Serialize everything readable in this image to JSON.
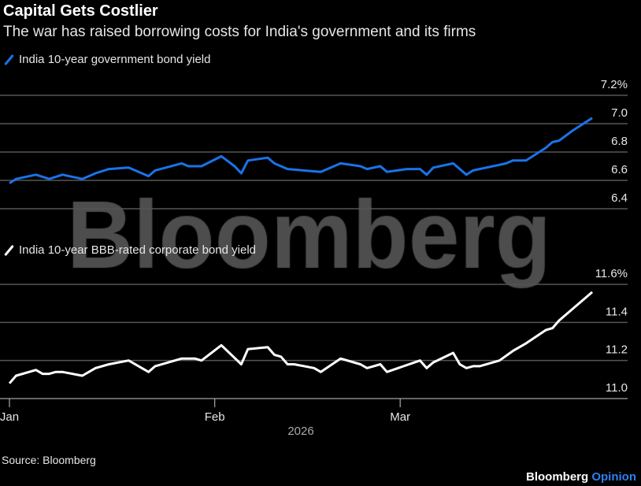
{
  "title": "Capital Gets Costlier",
  "subtitle": "The war has raised borrowing costs for India's government and its firms",
  "source": "Source: Bloomberg",
  "brand": {
    "name": "Bloomberg",
    "suffix": "Opinion"
  },
  "watermark": "Bloomberg",
  "colors": {
    "background": "#000000",
    "gov_line": "#1a73e8",
    "corp_line": "#ffffff",
    "grid": "#555555",
    "brand_accent": "#2f7ef0"
  },
  "chart_data": [
    {
      "type": "line",
      "legend_position": "top-left",
      "grid": true,
      "y_axis_side": "right",
      "ylim": [
        6.4,
        7.2
      ],
      "yticks": [
        "7.2%",
        "7.0",
        "6.8",
        "6.6",
        "6.4"
      ],
      "ytick_values": [
        7.2,
        7.0,
        6.8,
        6.6,
        6.4
      ],
      "series": [
        {
          "name": "India 10-year government bond yield",
          "color": "#1a73e8",
          "x": [
            "2026-01-01",
            "2026-01-02",
            "2026-01-05",
            "2026-01-07",
            "2026-01-09",
            "2026-01-12",
            "2026-01-14",
            "2026-01-16",
            "2026-01-19",
            "2026-01-22",
            "2026-01-23",
            "2026-01-27",
            "2026-01-28",
            "2026-01-30",
            "2026-02-02",
            "2026-02-04",
            "2026-02-05",
            "2026-02-06",
            "2026-02-09",
            "2026-02-10",
            "2026-02-12",
            "2026-02-17",
            "2026-02-20",
            "2026-02-23",
            "2026-02-24",
            "2026-02-26",
            "2026-02-27",
            "2026-03-02",
            "2026-03-04",
            "2026-03-05",
            "2026-03-06",
            "2026-03-09",
            "2026-03-11",
            "2026-03-12",
            "2026-03-17",
            "2026-03-18",
            "2026-03-20",
            "2026-03-23",
            "2026-03-24",
            "2026-03-25",
            "2026-03-27",
            "2026-03-30"
          ],
          "y": [
            6.58,
            6.61,
            6.64,
            6.61,
            6.64,
            6.61,
            6.65,
            6.68,
            6.69,
            6.63,
            6.67,
            6.72,
            6.7,
            6.7,
            6.77,
            6.7,
            6.65,
            6.74,
            6.76,
            6.72,
            6.68,
            6.66,
            6.72,
            6.7,
            6.68,
            6.7,
            6.66,
            6.68,
            6.68,
            6.64,
            6.69,
            6.72,
            6.64,
            6.67,
            6.72,
            6.74,
            6.74,
            6.83,
            6.87,
            6.88,
            6.95,
            7.04
          ]
        }
      ]
    },
    {
      "type": "line",
      "legend_position": "top-left",
      "grid": true,
      "y_axis_side": "right",
      "ylim": [
        11.0,
        11.6
      ],
      "yticks": [
        "11.6%",
        "11.4",
        "11.2",
        "11.0"
      ],
      "ytick_values": [
        11.6,
        11.4,
        11.2,
        11.0
      ],
      "xticks": [
        "Jan",
        "Feb",
        "Mar"
      ],
      "xtick_values": [
        "2026-01-01",
        "2026-02-01",
        "2026-03-01"
      ],
      "xlabel": "2026",
      "series": [
        {
          "name": "India 10-year BBB-rated corporate bond yield",
          "color": "#ffffff",
          "x": [
            "2026-01-01",
            "2026-01-02",
            "2026-01-05",
            "2026-01-06",
            "2026-01-07",
            "2026-01-08",
            "2026-01-09",
            "2026-01-12",
            "2026-01-14",
            "2026-01-16",
            "2026-01-19",
            "2026-01-22",
            "2026-01-23",
            "2026-01-27",
            "2026-01-29",
            "2026-01-30",
            "2026-02-02",
            "2026-02-05",
            "2026-02-06",
            "2026-02-09",
            "2026-02-10",
            "2026-02-11",
            "2026-02-12",
            "2026-02-13",
            "2026-02-16",
            "2026-02-17",
            "2026-02-20",
            "2026-02-23",
            "2026-02-24",
            "2026-02-26",
            "2026-02-27",
            "2026-03-04",
            "2026-03-05",
            "2026-03-06",
            "2026-03-09",
            "2026-03-10",
            "2026-03-11",
            "2026-03-12",
            "2026-03-13",
            "2026-03-16",
            "2026-03-18",
            "2026-03-20",
            "2026-03-23",
            "2026-03-24",
            "2026-03-25",
            "2026-03-27",
            "2026-03-30"
          ],
          "y": [
            11.08,
            11.12,
            11.15,
            11.13,
            11.13,
            11.14,
            11.14,
            11.12,
            11.16,
            11.18,
            11.2,
            11.14,
            11.17,
            11.21,
            11.21,
            11.2,
            11.28,
            11.18,
            11.26,
            11.27,
            11.23,
            11.22,
            11.18,
            11.18,
            11.16,
            11.14,
            11.21,
            11.18,
            11.16,
            11.18,
            11.14,
            11.2,
            11.16,
            11.19,
            11.24,
            11.18,
            11.16,
            11.17,
            11.17,
            11.2,
            11.25,
            11.29,
            11.36,
            11.37,
            11.41,
            11.47,
            11.56
          ]
        }
      ]
    }
  ]
}
